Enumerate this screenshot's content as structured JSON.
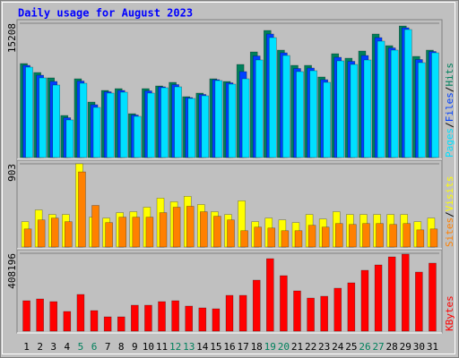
{
  "chart_data": {
    "type": "bar",
    "title": "Daily usage for August 2023",
    "categories": [
      "1",
      "2",
      "3",
      "4",
      "5",
      "6",
      "7",
      "8",
      "9",
      "10",
      "11",
      "12",
      "13",
      "14",
      "15",
      "16",
      "17",
      "18",
      "19",
      "20",
      "21",
      "22",
      "23",
      "24",
      "25",
      "26",
      "27",
      "28",
      "29",
      "30",
      "31"
    ],
    "category_colors": [
      "#000000",
      "#000000",
      "#000000",
      "#000000",
      "#00805c",
      "#00805c",
      "#000000",
      "#000000",
      "#000000",
      "#000000",
      "#000000",
      "#00805c",
      "#00805c",
      "#000000",
      "#000000",
      "#000000",
      "#000000",
      "#000000",
      "#00805c",
      "#00805c",
      "#000000",
      "#000000",
      "#000000",
      "#000000",
      "#000000",
      "#00805c",
      "#00805c",
      "#000000",
      "#000000",
      "#000000",
      "#000000"
    ],
    "separator": "/",
    "panels": [
      {
        "ylim": [
          0,
          15208
        ],
        "yticks": [
          15208
        ],
        "series": [
          {
            "name": "Hits",
            "color": "#00805c",
            "values": [
              10646,
              9632,
              9024,
              4765,
              8922,
              6286,
              7604,
              7807,
              4968,
              7807,
              8111,
              8517,
              6894,
              7300,
              8922,
              8618,
              10544,
              11964,
              14397,
              12167,
              10443,
              10443,
              9125,
              11761,
              11254,
              12065,
              13992,
              12674,
              14904,
              11457,
              12167
            ]
          },
          {
            "name": "Files",
            "color": "#0040ff",
            "values": [
              10443,
              9328,
              8618,
              4512,
              8668,
              5982,
              7452,
              7604,
              4816,
              7554,
              8010,
              8264,
              6793,
              7148,
              8820,
              8466,
              9733,
              11507,
              13992,
              11862,
              10088,
              10139,
              8821,
              11355,
              10899,
              11558,
              13586,
              12420,
              14701,
              11102,
              12014
            ]
          },
          {
            "name": "Pages",
            "color": "#00e0ff",
            "values": [
              10240,
              9024,
              8213,
              4258,
              8415,
              5678,
              7300,
              7401,
              4664,
              7300,
              7908,
              8010,
              6692,
              6996,
              8719,
              8314,
              8922,
              11051,
              13586,
              11558,
              9733,
              9835,
              8517,
              10950,
              10544,
              11051,
              13181,
              12167,
              14499,
              10747,
              11862
            ]
          }
        ]
      },
      {
        "ylim": [
          0,
          903
        ],
        "yticks": [
          903
        ],
        "series": [
          {
            "name": "Visits",
            "color": "#ffff00",
            "values": [
              275,
              402,
              353,
              353,
              903,
              324,
              314,
              373,
              383,
              432,
              530,
              491,
              550,
              461,
              383,
              353,
              501,
              275,
              314,
              294,
              265,
              353,
              304,
              383,
              353,
              353,
              353,
              353,
              353,
              275,
              314
            ]
          },
          {
            "name": "Sites",
            "color": "#ff8000",
            "values": [
              196,
              294,
              314,
              275,
              815,
              451,
              265,
              324,
              324,
              324,
              373,
              432,
              442,
              383,
              334,
              294,
              177,
              216,
              206,
              177,
              177,
              236,
              216,
              255,
              245,
              255,
              255,
              245,
              255,
              186,
              196
            ]
          }
        ]
      },
      {
        "ylim": [
          0,
          408196
        ],
        "yticks": [
          408196
        ],
        "series": [
          {
            "name": "KBytes",
            "color": "#ff0000",
            "values": [
              159528,
              168912,
              154836,
              103224,
              192372,
              107916,
              75072,
              75072,
              136068,
              136068,
              154836,
              159528,
              131376,
              121992,
              117300,
              187680,
              187680,
              267444,
              380052,
              290904,
              211140,
              173604,
              182988,
              225216,
              253368,
              319056,
              347208,
              389436,
              403512,
              309672,
              356592
            ]
          }
        ]
      }
    ]
  }
}
